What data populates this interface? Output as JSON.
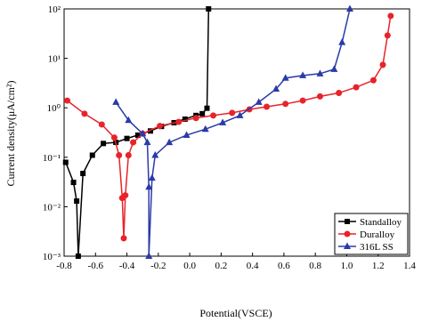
{
  "chart_data": {
    "type": "line",
    "x_label": "Potential(VSCE)",
    "y_label": "Current density(μA/cm²)",
    "yscale": "log",
    "xlim": [
      -0.8,
      1.4
    ],
    "ylim": [
      0.001,
      100
    ],
    "xticks": [
      -0.8,
      -0.6,
      -0.4,
      -0.2,
      {
        "value": 0,
        "label": "0.0"
      },
      0.2,
      0.4,
      0.6,
      0.8,
      {
        "value": 1,
        "label": "1.0"
      },
      1.2,
      1.4
    ],
    "yticks": [
      {
        "value": 0.001,
        "label": "10⁻³"
      },
      {
        "value": 0.01,
        "label": "10⁻²"
      },
      {
        "value": 0.1,
        "label": "10⁻¹"
      },
      {
        "value": 1,
        "label": "10⁰"
      },
      {
        "value": 10,
        "label": "10¹"
      },
      {
        "value": 100,
        "label": "10²"
      }
    ],
    "legend": "lower right",
    "series": [
      {
        "name": "Standalloy",
        "color": "#000000",
        "marker": "square",
        "x": [
          -0.79,
          -0.74,
          -0.72,
          -0.71,
          -0.68,
          -0.62,
          -0.55,
          -0.47,
          -0.4,
          -0.33,
          -0.25,
          -0.18,
          -0.1,
          -0.03,
          0.04,
          0.08,
          0.11,
          0.12
        ],
        "values": [
          0.079,
          0.031,
          0.013,
          0.001,
          0.047,
          0.11,
          0.19,
          0.2,
          0.24,
          0.28,
          0.34,
          0.42,
          0.5,
          0.59,
          0.7,
          0.76,
          0.98,
          100
        ]
      },
      {
        "name": "Duralloy",
        "color": "#e8232a",
        "marker": "circle",
        "x": [
          -0.78,
          -0.67,
          -0.56,
          -0.48,
          -0.45,
          -0.43,
          -0.42,
          -0.41,
          -0.39,
          -0.36,
          -0.3,
          -0.19,
          -0.07,
          0.04,
          0.15,
          0.27,
          0.38,
          0.49,
          0.61,
          0.72,
          0.83,
          0.95,
          1.06,
          1.17,
          1.23,
          1.26,
          1.28
        ],
        "values": [
          1.4,
          0.76,
          0.46,
          0.25,
          0.11,
          0.015,
          0.0023,
          0.017,
          0.11,
          0.2,
          0.3,
          0.43,
          0.52,
          0.62,
          0.7,
          0.79,
          0.93,
          1.05,
          1.2,
          1.4,
          1.7,
          2.0,
          2.6,
          3.6,
          7.4,
          29,
          72
        ]
      },
      {
        "name": "316L SS",
        "color": "#2a3aa8",
        "marker": "triangle",
        "x": [
          -0.47,
          -0.39,
          -0.3,
          -0.27,
          -0.26,
          -0.26,
          -0.24,
          -0.22,
          -0.13,
          -0.02,
          0.1,
          0.21,
          0.32,
          0.44,
          0.55,
          0.61,
          0.72,
          0.83,
          0.92,
          0.97,
          1.02
        ],
        "values": [
          1.3,
          0.56,
          0.3,
          0.2,
          0.025,
          0.001,
          0.038,
          0.11,
          0.2,
          0.28,
          0.37,
          0.5,
          0.7,
          1.3,
          2.4,
          4.0,
          4.5,
          4.9,
          6.0,
          21,
          100
        ]
      }
    ]
  }
}
